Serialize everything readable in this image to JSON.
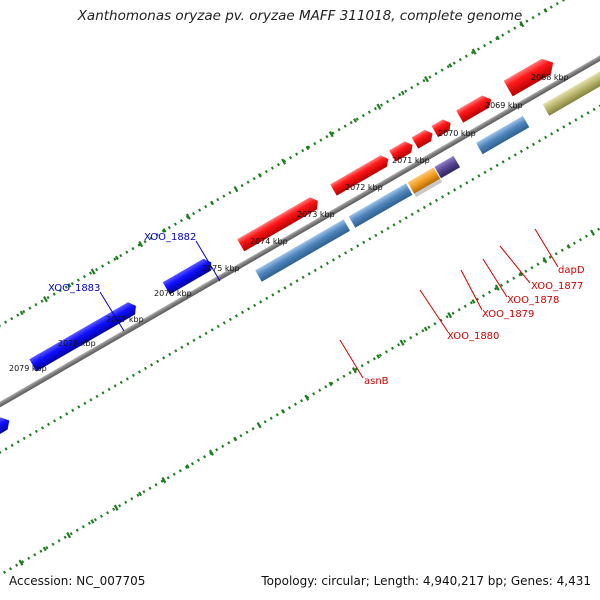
{
  "title": "Xanthomonas oryzae pv. oryzae MAFF 311018, complete genome",
  "footer": {
    "accession": "Accession: NC_007705",
    "stats": "Topology: circular; Length: 4,940,217 bp; Genes: 4,431"
  },
  "colors": {
    "backbone": "#808080",
    "tick_ring": "#1e7d1e",
    "forward_gene": "#ff0000",
    "reverse_gene": "#0000ff",
    "steel_blue_feature": "#4f86bd",
    "olive_feature": "#b5b26b",
    "orange_feature": "#f09a1e",
    "purple_feature": "#55448f",
    "grey_feature": "#bdbdbd",
    "label_red": "#cc0000",
    "label_blue": "#0000cc"
  },
  "ticks": [
    {
      "label": "2068 kbp"
    },
    {
      "label": "2069 kbp"
    },
    {
      "label": "2070 kbp"
    },
    {
      "label": "2071 kbp"
    },
    {
      "label": "2072 kbp"
    },
    {
      "label": "2073 kbp"
    },
    {
      "label": "2074 kbp"
    },
    {
      "label": "2075 kbp"
    },
    {
      "label": "2076 kbp"
    },
    {
      "label": "2077 kbp"
    },
    {
      "label": "2078 kbp"
    },
    {
      "label": "2079 kbp"
    }
  ],
  "gene_labels": {
    "dapD": "dapD",
    "XOO_1877": "XOO_1877",
    "XOO_1878": "XOO_1878",
    "XOO_1879": "XOO_1879",
    "XOO_1880": "XOO_1880",
    "asnB": "asnB",
    "XOO_1882": "XOO_1882",
    "XOO_1883": "XOO_1883"
  }
}
